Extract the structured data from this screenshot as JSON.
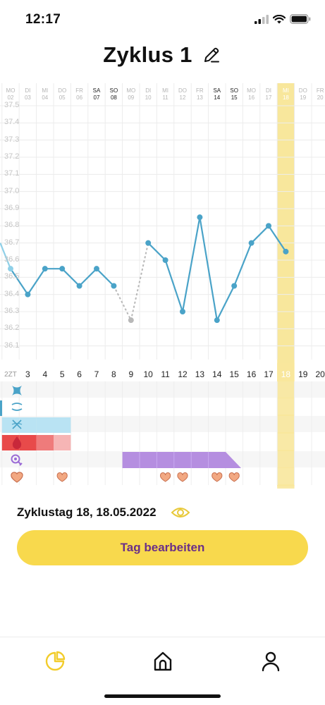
{
  "status_bar": {
    "time": "12:17"
  },
  "header": {
    "title": "Zyklus 1"
  },
  "calendar": {
    "days": [
      {
        "weekday": "MO",
        "date": "02",
        "cycle_day": "2",
        "weekend": false
      },
      {
        "weekday": "DI",
        "date": "03",
        "cycle_day": "3",
        "weekend": false
      },
      {
        "weekday": "MI",
        "date": "04",
        "cycle_day": "4",
        "weekend": false
      },
      {
        "weekday": "DO",
        "date": "05",
        "cycle_day": "5",
        "weekend": false
      },
      {
        "weekday": "FR",
        "date": "06",
        "cycle_day": "6",
        "weekend": false
      },
      {
        "weekday": "SA",
        "date": "07",
        "cycle_day": "7",
        "weekend": true
      },
      {
        "weekday": "SO",
        "date": "08",
        "cycle_day": "8",
        "weekend": true
      },
      {
        "weekday": "MO",
        "date": "09",
        "cycle_day": "9",
        "weekend": false
      },
      {
        "weekday": "DI",
        "date": "10",
        "cycle_day": "10",
        "weekend": false
      },
      {
        "weekday": "MI",
        "date": "11",
        "cycle_day": "11",
        "weekend": false
      },
      {
        "weekday": "DO",
        "date": "12",
        "cycle_day": "12",
        "weekend": false
      },
      {
        "weekday": "FR",
        "date": "13",
        "cycle_day": "13",
        "weekend": false
      },
      {
        "weekday": "SA",
        "date": "14",
        "cycle_day": "14",
        "weekend": true
      },
      {
        "weekday": "SO",
        "date": "15",
        "cycle_day": "15",
        "weekend": true
      },
      {
        "weekday": "MO",
        "date": "16",
        "cycle_day": "16",
        "weekend": false
      },
      {
        "weekday": "DI",
        "date": "17",
        "cycle_day": "17",
        "weekend": false
      },
      {
        "weekday": "MI",
        "date": "18",
        "cycle_day": "18",
        "weekend": false
      },
      {
        "weekday": "DO",
        "date": "19",
        "cycle_day": "19",
        "weekend": false
      },
      {
        "weekday": "FR",
        "date": "20",
        "cycle_day": "20",
        "weekend": false
      }
    ],
    "row_prefix": "ZT",
    "selected_day": "18"
  },
  "chart_data": {
    "type": "line",
    "ylim": [
      36.0,
      37.5
    ],
    "yticks": [
      "37.5",
      "37.4",
      "37.3",
      "37.2",
      "37.1",
      "37.0",
      "36.9",
      "36.8",
      "36.7",
      "36.6",
      "36.5",
      "36.4",
      "36.3",
      "36.2",
      "36.1"
    ],
    "series": [
      {
        "points": [
          {
            "x": 2,
            "y": 36.55
          },
          {
            "x": 3,
            "y": 36.4
          },
          {
            "x": 4,
            "y": 36.55
          },
          {
            "x": 5,
            "y": 36.55
          },
          {
            "x": 6,
            "y": 36.45
          },
          {
            "x": 7,
            "y": 36.55
          },
          {
            "x": 8,
            "y": 36.45
          },
          {
            "x": 9,
            "y": 36.25,
            "excluded": true
          },
          {
            "x": 10,
            "y": 36.7
          },
          {
            "x": 11,
            "y": 36.6
          },
          {
            "x": 12,
            "y": 36.3
          },
          {
            "x": 13,
            "y": 36.85
          },
          {
            "x": 14,
            "y": 36.25
          },
          {
            "x": 15,
            "y": 36.45
          },
          {
            "x": 16,
            "y": 36.7
          },
          {
            "x": 17,
            "y": 36.8
          },
          {
            "x": 18,
            "y": 36.65
          }
        ],
        "color": "#4aa3c8"
      }
    ],
    "lead_in": {
      "x": 1,
      "y": 36.7
    }
  },
  "tracks": {
    "colors": {
      "cervical": "#b9e3f3",
      "bleeding_dark": "#e84a4a",
      "bleeding_mid": "#ef7b7b",
      "bleeding_light": "#f6b5b5",
      "mittelschmerz": "#b58ee0",
      "heart": "#f2a882",
      "highlight": "#f8e79c",
      "line": "#4aa3c8",
      "accent": "#f8d94d",
      "accent_text": "#6a2f88"
    },
    "cervical_days": [
      2,
      3,
      4,
      5
    ],
    "bleeding_days": [
      {
        "day": 2,
        "level": "dark"
      },
      {
        "day": 3,
        "level": "dark"
      },
      {
        "day": 4,
        "level": "mid"
      },
      {
        "day": 5,
        "level": "light"
      }
    ],
    "pain_days": [
      9,
      10,
      11,
      12,
      13,
      14
    ],
    "heart_days": [
      2,
      5,
      11,
      12,
      14,
      15
    ]
  },
  "info": {
    "cycle_day_text": "Zyklustag 18, 18.05.2022",
    "edit_button": "Tag bearbeiten"
  },
  "nav": {
    "items": [
      "chart-icon",
      "home-icon",
      "profile-icon"
    ]
  }
}
